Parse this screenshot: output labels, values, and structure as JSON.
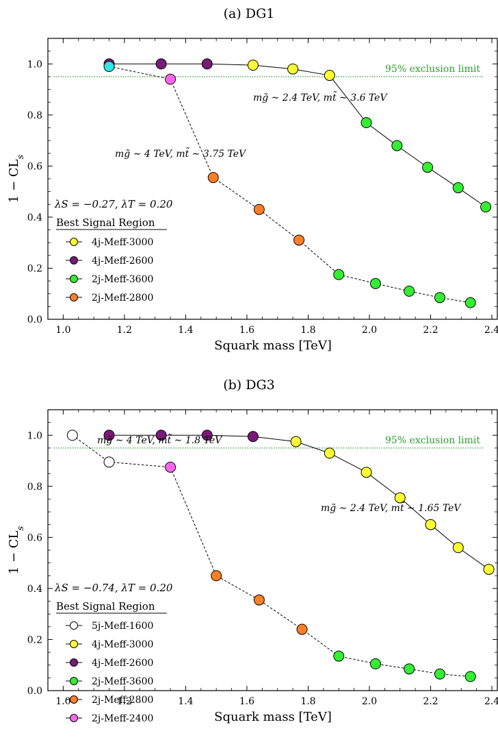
{
  "chart_data": [
    {
      "type": "line",
      "title": "(a) DG1",
      "xlabel": "Squark mass [TeV]",
      "ylabel": "1 − CL",
      "ylabel_sub": "s",
      "xlim": [
        0.95,
        2.42
      ],
      "ylim": [
        0.0,
        1.1
      ],
      "xticks": [
        "1.0",
        "1.2",
        "1.4",
        "1.6",
        "1.8",
        "2.0",
        "2.2",
        "2.4"
      ],
      "yticks": [
        "0.0",
        "0.2",
        "0.4",
        "0.6",
        "0.8",
        "1.0"
      ],
      "limit": {
        "y": 0.95,
        "label": "95% exclusion limit",
        "color": "#2ca02c"
      },
      "params": "λS = −0.27, λT = 0.20",
      "legend_title": "Best Signal Region",
      "legend": [
        {
          "label": "4j-Meff-3000",
          "color": "#ffff33"
        },
        {
          "label": "4j-Meff-2600",
          "color": "#7a1a78"
        },
        {
          "label": "2j-Meff-3600",
          "color": "#33ee33"
        },
        {
          "label": "2j-Meff-2800",
          "color": "#ff7f27"
        }
      ],
      "series": [
        {
          "annotation": "mg̃ ∼ 2.4 TeV, mt̃ ∼ 3.6 TeV",
          "line": "solid",
          "points": [
            {
              "x": 1.15,
              "y": 1.0,
              "color": "#7a1a78"
            },
            {
              "x": 1.32,
              "y": 1.0,
              "color": "#7a1a78"
            },
            {
              "x": 1.47,
              "y": 1.0,
              "color": "#7a1a78"
            },
            {
              "x": 1.62,
              "y": 0.995,
              "color": "#ffff33"
            },
            {
              "x": 1.75,
              "y": 0.98,
              "color": "#ffff33"
            },
            {
              "x": 1.87,
              "y": 0.955,
              "color": "#ffff33"
            },
            {
              "x": 1.99,
              "y": 0.77,
              "color": "#33ee33"
            },
            {
              "x": 2.09,
              "y": 0.68,
              "color": "#33ee33"
            },
            {
              "x": 2.19,
              "y": 0.595,
              "color": "#33ee33"
            },
            {
              "x": 2.29,
              "y": 0.515,
              "color": "#33ee33"
            },
            {
              "x": 2.38,
              "y": 0.44,
              "color": "#33ee33"
            }
          ]
        },
        {
          "annotation": "mg̃ ∼ 4 TeV, mt̃ ∼ 3.75 TeV",
          "line": "dashed",
          "points": [
            {
              "x": 1.15,
              "y": 0.99,
              "color": "#33e5e5"
            },
            {
              "x": 1.35,
              "y": 0.94,
              "color": "#ff66ee"
            },
            {
              "x": 1.49,
              "y": 0.555,
              "color": "#ff7f27"
            },
            {
              "x": 1.64,
              "y": 0.43,
              "color": "#ff7f27"
            },
            {
              "x": 1.77,
              "y": 0.31,
              "color": "#ff7f27"
            },
            {
              "x": 1.9,
              "y": 0.175,
              "color": "#33ee33"
            },
            {
              "x": 2.02,
              "y": 0.14,
              "color": "#33ee33"
            },
            {
              "x": 2.13,
              "y": 0.11,
              "color": "#33ee33"
            },
            {
              "x": 2.23,
              "y": 0.085,
              "color": "#33ee33"
            },
            {
              "x": 2.33,
              "y": 0.065,
              "color": "#33ee33"
            }
          ]
        }
      ]
    },
    {
      "type": "line",
      "title": "(b) DG3",
      "xlabel": "Squark mass [TeV]",
      "ylabel": "1 − CL",
      "ylabel_sub": "s",
      "xlim": [
        0.95,
        2.42
      ],
      "ylim": [
        0.0,
        1.1
      ],
      "xticks": [
        "1.0",
        "1.2",
        "1.4",
        "1.6",
        "1.8",
        "2.0",
        "2.2",
        "2.4"
      ],
      "yticks": [
        "0.0",
        "0.2",
        "0.4",
        "0.6",
        "0.8",
        "1.0"
      ],
      "limit": {
        "y": 0.95,
        "label": "95% exclusion limit",
        "color": "#2ca02c"
      },
      "params": "λS = −0.74, λT = 0.20",
      "legend_title": "Best Signal Region",
      "legend": [
        {
          "label": "5j-Meff-1600",
          "color": "#ffffff"
        },
        {
          "label": "4j-Meff-3000",
          "color": "#ffff33"
        },
        {
          "label": "4j-Meff-2600",
          "color": "#7a1a78"
        },
        {
          "label": "2j-Meff-3600",
          "color": "#33ee33"
        },
        {
          "label": "2j-Meff-2800",
          "color": "#ff7f27"
        },
        {
          "label": "2j-Meff-2400",
          "color": "#ff66ee"
        }
      ],
      "series": [
        {
          "annotation": "mg̃ ∼ 2.4 TeV, mt̃ ∼ 1.65 TeV",
          "line": "solid",
          "points": [
            {
              "x": 1.15,
              "y": 1.0,
              "color": "#7a1a78"
            },
            {
              "x": 1.32,
              "y": 1.0,
              "color": "#7a1a78"
            },
            {
              "x": 1.47,
              "y": 1.0,
              "color": "#7a1a78"
            },
            {
              "x": 1.62,
              "y": 0.995,
              "color": "#7a1a78"
            },
            {
              "x": 1.76,
              "y": 0.975,
              "color": "#ffff33"
            },
            {
              "x": 1.87,
              "y": 0.93,
              "color": "#ffff33"
            },
            {
              "x": 1.99,
              "y": 0.855,
              "color": "#ffff33"
            },
            {
              "x": 2.1,
              "y": 0.755,
              "color": "#ffff33"
            },
            {
              "x": 2.2,
              "y": 0.65,
              "color": "#ffff33"
            },
            {
              "x": 2.29,
              "y": 0.56,
              "color": "#ffff33"
            },
            {
              "x": 2.39,
              "y": 0.475,
              "color": "#ffff33"
            }
          ]
        },
        {
          "annotation": "mg̃ ∼ 4 TeV, mt̃ ∼ 1.8 TeV",
          "line": "dashed",
          "points": [
            {
              "x": 1.03,
              "y": 1.0,
              "color": "#ffffff"
            },
            {
              "x": 1.15,
              "y": 0.895,
              "color": "#ffffff"
            },
            {
              "x": 1.35,
              "y": 0.875,
              "color": "#ff66ee"
            },
            {
              "x": 1.5,
              "y": 0.45,
              "color": "#ff7f27"
            },
            {
              "x": 1.64,
              "y": 0.355,
              "color": "#ff7f27"
            },
            {
              "x": 1.78,
              "y": 0.24,
              "color": "#ff7f27"
            },
            {
              "x": 1.9,
              "y": 0.135,
              "color": "#33ee33"
            },
            {
              "x": 2.02,
              "y": 0.105,
              "color": "#33ee33"
            },
            {
              "x": 2.13,
              "y": 0.085,
              "color": "#33ee33"
            },
            {
              "x": 2.23,
              "y": 0.065,
              "color": "#33ee33"
            },
            {
              "x": 2.33,
              "y": 0.055,
              "color": "#33ee33"
            }
          ]
        }
      ]
    }
  ]
}
